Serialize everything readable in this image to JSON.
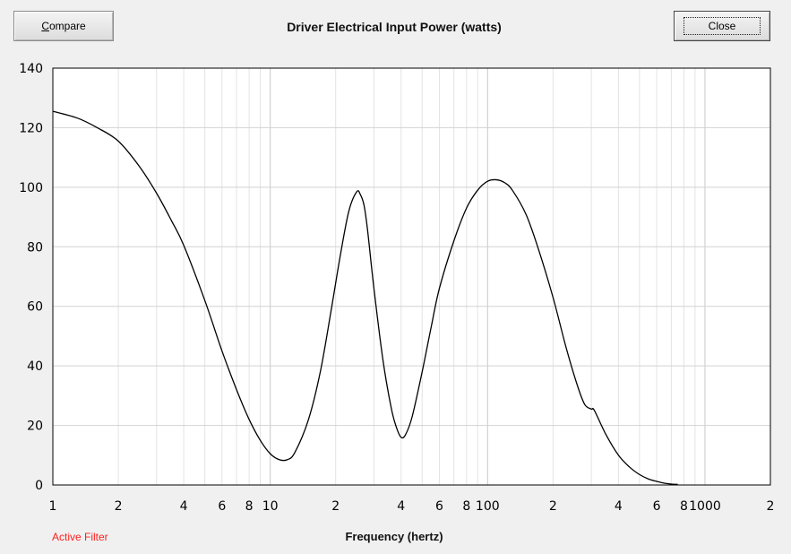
{
  "buttons": {
    "compare_first": "C",
    "compare_rest": "ompare",
    "close": "Close"
  },
  "footer": {
    "note": "Active Filter",
    "note_color": "#ff2020"
  },
  "chart_data": {
    "type": "line",
    "title": "Driver Electrical Input Power (watts)",
    "xlabel": "Frequency (hertz)",
    "ylabel": "",
    "xscale": "log",
    "xlim": [
      1,
      2000
    ],
    "ylim": [
      0,
      140
    ],
    "grid": true,
    "plot_background": "#ffffff",
    "line_color": "#000000",
    "x_tick_labels": [
      {
        "x": 1,
        "label": "1"
      },
      {
        "x": 2,
        "label": "2"
      },
      {
        "x": 4,
        "label": "4"
      },
      {
        "x": 6,
        "label": "6"
      },
      {
        "x": 8,
        "label": "8"
      },
      {
        "x": 10,
        "label": "10"
      },
      {
        "x": 20,
        "label": "2"
      },
      {
        "x": 40,
        "label": "4"
      },
      {
        "x": 60,
        "label": "6"
      },
      {
        "x": 80,
        "label": "8"
      },
      {
        "x": 100,
        "label": "100"
      },
      {
        "x": 200,
        "label": "2"
      },
      {
        "x": 400,
        "label": "4"
      },
      {
        "x": 600,
        "label": "6"
      },
      {
        "x": 800,
        "label": "8"
      },
      {
        "x": 1000,
        "label": "1000"
      },
      {
        "x": 2000,
        "label": "2"
      }
    ],
    "y_ticks": [
      0,
      20,
      40,
      60,
      80,
      100,
      120,
      140
    ],
    "series": [
      {
        "x": [
          1,
          1.3,
          1.6,
          2,
          2.5,
          3,
          3.5,
          4,
          5,
          6,
          7,
          8,
          9,
          10,
          11,
          12,
          13,
          15,
          17,
          19,
          21,
          23,
          25,
          26,
          27,
          28,
          30,
          33,
          36,
          38,
          40,
          42,
          45,
          50,
          55,
          60,
          70,
          80,
          90,
          100,
          110,
          120,
          130,
          150,
          170,
          200,
          230,
          260,
          280,
          300,
          310,
          350,
          400,
          450,
          500,
          550,
          600,
          650,
          700,
          750
        ],
        "y": [
          125.5,
          123.2,
          120,
          115.5,
          107,
          98,
          89,
          80.5,
          62,
          45,
          32,
          22,
          15,
          10.5,
          8.5,
          8.5,
          11,
          22,
          38,
          58,
          77,
          92,
          98.5,
          97.5,
          94,
          86,
          66,
          42,
          26,
          19.5,
          16,
          17,
          23,
          38,
          53,
          66,
          82,
          93,
          99,
          102,
          102.5,
          101.5,
          99,
          91,
          80,
          63,
          46,
          33,
          27,
          25.5,
          25,
          17,
          10,
          6,
          3.5,
          2,
          1.2,
          0.6,
          0.3,
          0.2
        ]
      }
    ]
  }
}
